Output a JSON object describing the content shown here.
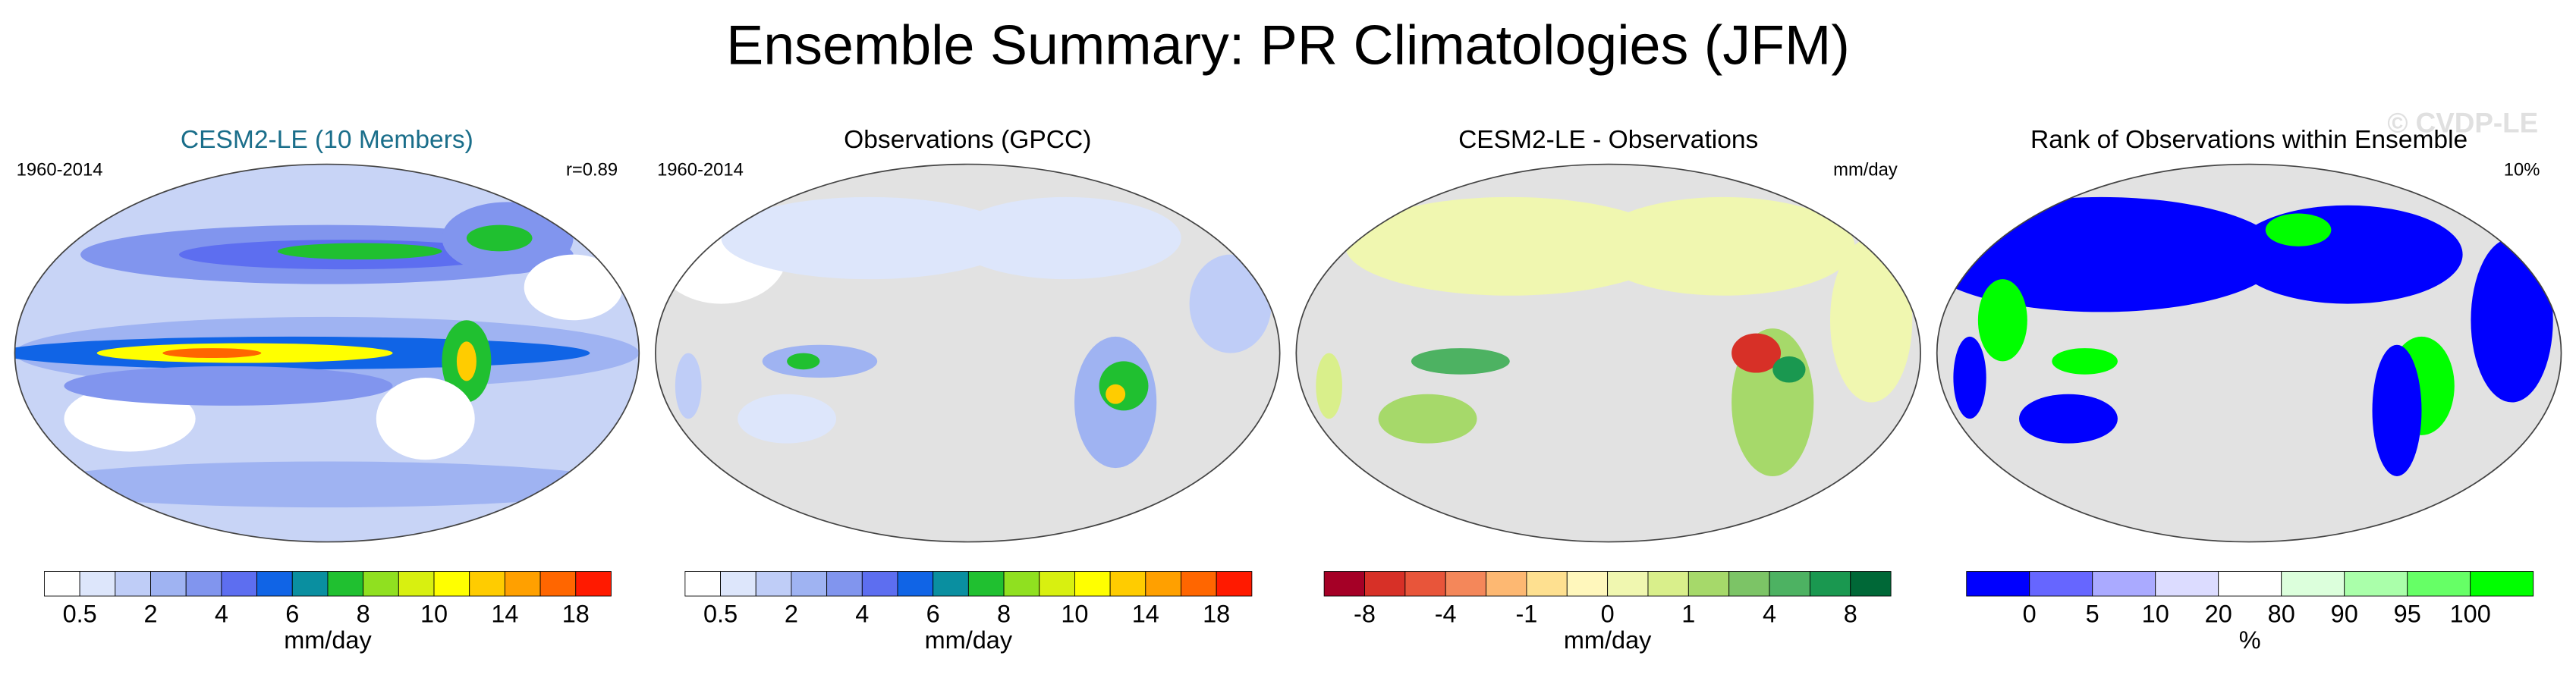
{
  "title": "Ensemble Summary: PR Climatologies (JFM)",
  "watermark": "© CVDP-LE",
  "panels": [
    {
      "title": "CESM2-LE (10 Members)",
      "left_label": "1960-2014",
      "right_label": "r=0.89",
      "colorbar": {
        "colors": [
          "#ffffff",
          "#dde6fb",
          "#bfcdf7",
          "#9fb3f2",
          "#8195ee",
          "#5d6ef0",
          "#1064e6",
          "#0a8fa0",
          "#20c030",
          "#90e020",
          "#d8f010",
          "#ffff00",
          "#ffcc00",
          "#ffa000",
          "#ff6600",
          "#ff1a00"
        ],
        "labels": [
          "0.5",
          "2",
          "4",
          "6",
          "8",
          "10",
          "14",
          "18"
        ],
        "unit": "mm/day"
      }
    },
    {
      "title": "Observations (GPCC)",
      "left_label": "1960-2014",
      "colorbar": {
        "colors": [
          "#ffffff",
          "#dde6fb",
          "#bfcdf7",
          "#9fb3f2",
          "#8195ee",
          "#5d6ef0",
          "#1064e6",
          "#0a8fa0",
          "#20c030",
          "#90e020",
          "#d8f010",
          "#ffff00",
          "#ffcc00",
          "#ffa000",
          "#ff6600",
          "#ff1a00"
        ],
        "labels": [
          "0.5",
          "2",
          "4",
          "6",
          "8",
          "10",
          "14",
          "18"
        ],
        "unit": "mm/day"
      }
    },
    {
      "title": "CESM2-LE - Observations",
      "right_label": "mm/day",
      "colorbar": {
        "colors": [
          "#a50026",
          "#d73027",
          "#e8553a",
          "#f4875a",
          "#fdb872",
          "#fee090",
          "#fff7bc",
          "#f0f7b0",
          "#d9ef8b",
          "#a6d96a",
          "#7cc466",
          "#4db262",
          "#1a9850",
          "#006837"
        ],
        "labels": [
          "-8",
          "-4",
          "-1",
          "0",
          "1",
          "4",
          "8"
        ],
        "unit": "mm/day"
      }
    },
    {
      "title": "Rank of Observations within Ensemble",
      "right_label": "10%",
      "colorbar": {
        "colors": [
          "#0000ff",
          "#6666ff",
          "#aaaaff",
          "#dcdcff",
          "#ffffff",
          "#dcffdc",
          "#aaffaa",
          "#66ff66",
          "#00ff00"
        ],
        "labels": [
          "0",
          "5",
          "10",
          "20",
          "80",
          "90",
          "95",
          "100"
        ],
        "unit": "%"
      }
    }
  ]
}
